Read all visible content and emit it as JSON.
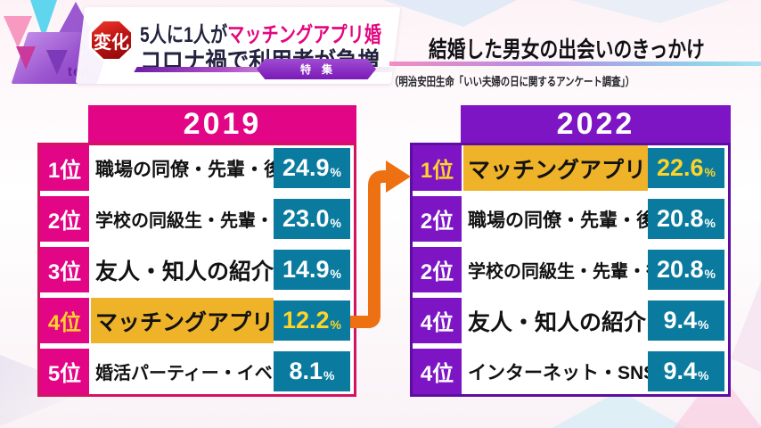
{
  "program": {
    "logo_text": "ten.",
    "change_badge": "変化",
    "headline_prefix": "5人に1人が",
    "headline_highlight": "マッチングアプリ婚",
    "headline_line2": "コロナ禍で利用者が急増",
    "feature_badge": "特集"
  },
  "header": {
    "title": "結婚した男女の出会いのきっかけ",
    "source": "（明治安田生命「いい夫婦の日に関するアンケート調査」）"
  },
  "percent_suffix": "%",
  "colors": {
    "magenta_2019": "#e20585",
    "magenta_border": "#d31361",
    "purple_2022": "#7d15c4",
    "purple_border": "#5d0da1",
    "teal_percent_box": "#0a7b9e",
    "gold_highlight": "#efb32a",
    "yellow_text": "#ffd428",
    "orange_arrow": "#ed7012",
    "headline_navy": "#23233f",
    "headline_pink": "#e3067f",
    "badge_red": "#c01414"
  },
  "chart_data": {
    "type": "table",
    "title": "結婚した男女の出会いのきっかけ",
    "source": "明治安田生命「いい夫婦の日に関するアンケート調査」",
    "note": "5人に1人がマッチングアプリ婚 コロナ禍で利用者が急増",
    "tables": [
      {
        "year": "2019",
        "accent_color": "#e20585",
        "rows": [
          {
            "rank": "1位",
            "label": "職場の同僚・先輩・後輩",
            "pct": "24.9",
            "value": 24.9,
            "highlighted": false
          },
          {
            "rank": "2位",
            "label": "学校の同級生・先輩・後輩",
            "pct": "23.0",
            "value": 23.0,
            "highlighted": false
          },
          {
            "rank": "3位",
            "label": "友人・知人の紹介",
            "pct": "14.9",
            "value": 14.9,
            "highlighted": false
          },
          {
            "rank": "4位",
            "label": "マッチングアプリ",
            "pct": "12.2",
            "value": 12.2,
            "highlighted": true
          },
          {
            "rank": "5位",
            "label": "婚活パーティー・イベント",
            "pct": "8.1",
            "value": 8.1,
            "highlighted": false
          }
        ]
      },
      {
        "year": "2022",
        "accent_color": "#7d15c4",
        "rows": [
          {
            "rank": "1位",
            "label": "マッチングアプリ",
            "pct": "22.6",
            "value": 22.6,
            "highlighted": true
          },
          {
            "rank": "2位",
            "label": "職場の同僚・先輩・後輩",
            "pct": "20.8",
            "value": 20.8,
            "highlighted": false
          },
          {
            "rank": "2位",
            "label": "学校の同級生・先輩・後輩",
            "pct": "20.8",
            "value": 20.8,
            "highlighted": false
          },
          {
            "rank": "4位",
            "label": "友人・知人の紹介",
            "pct": "9.4",
            "value": 9.4,
            "highlighted": false
          },
          {
            "rank": "4位",
            "label": "インターネット・SNS",
            "pct": "9.4",
            "value": 9.4,
            "highlighted": false
          }
        ]
      }
    ]
  }
}
